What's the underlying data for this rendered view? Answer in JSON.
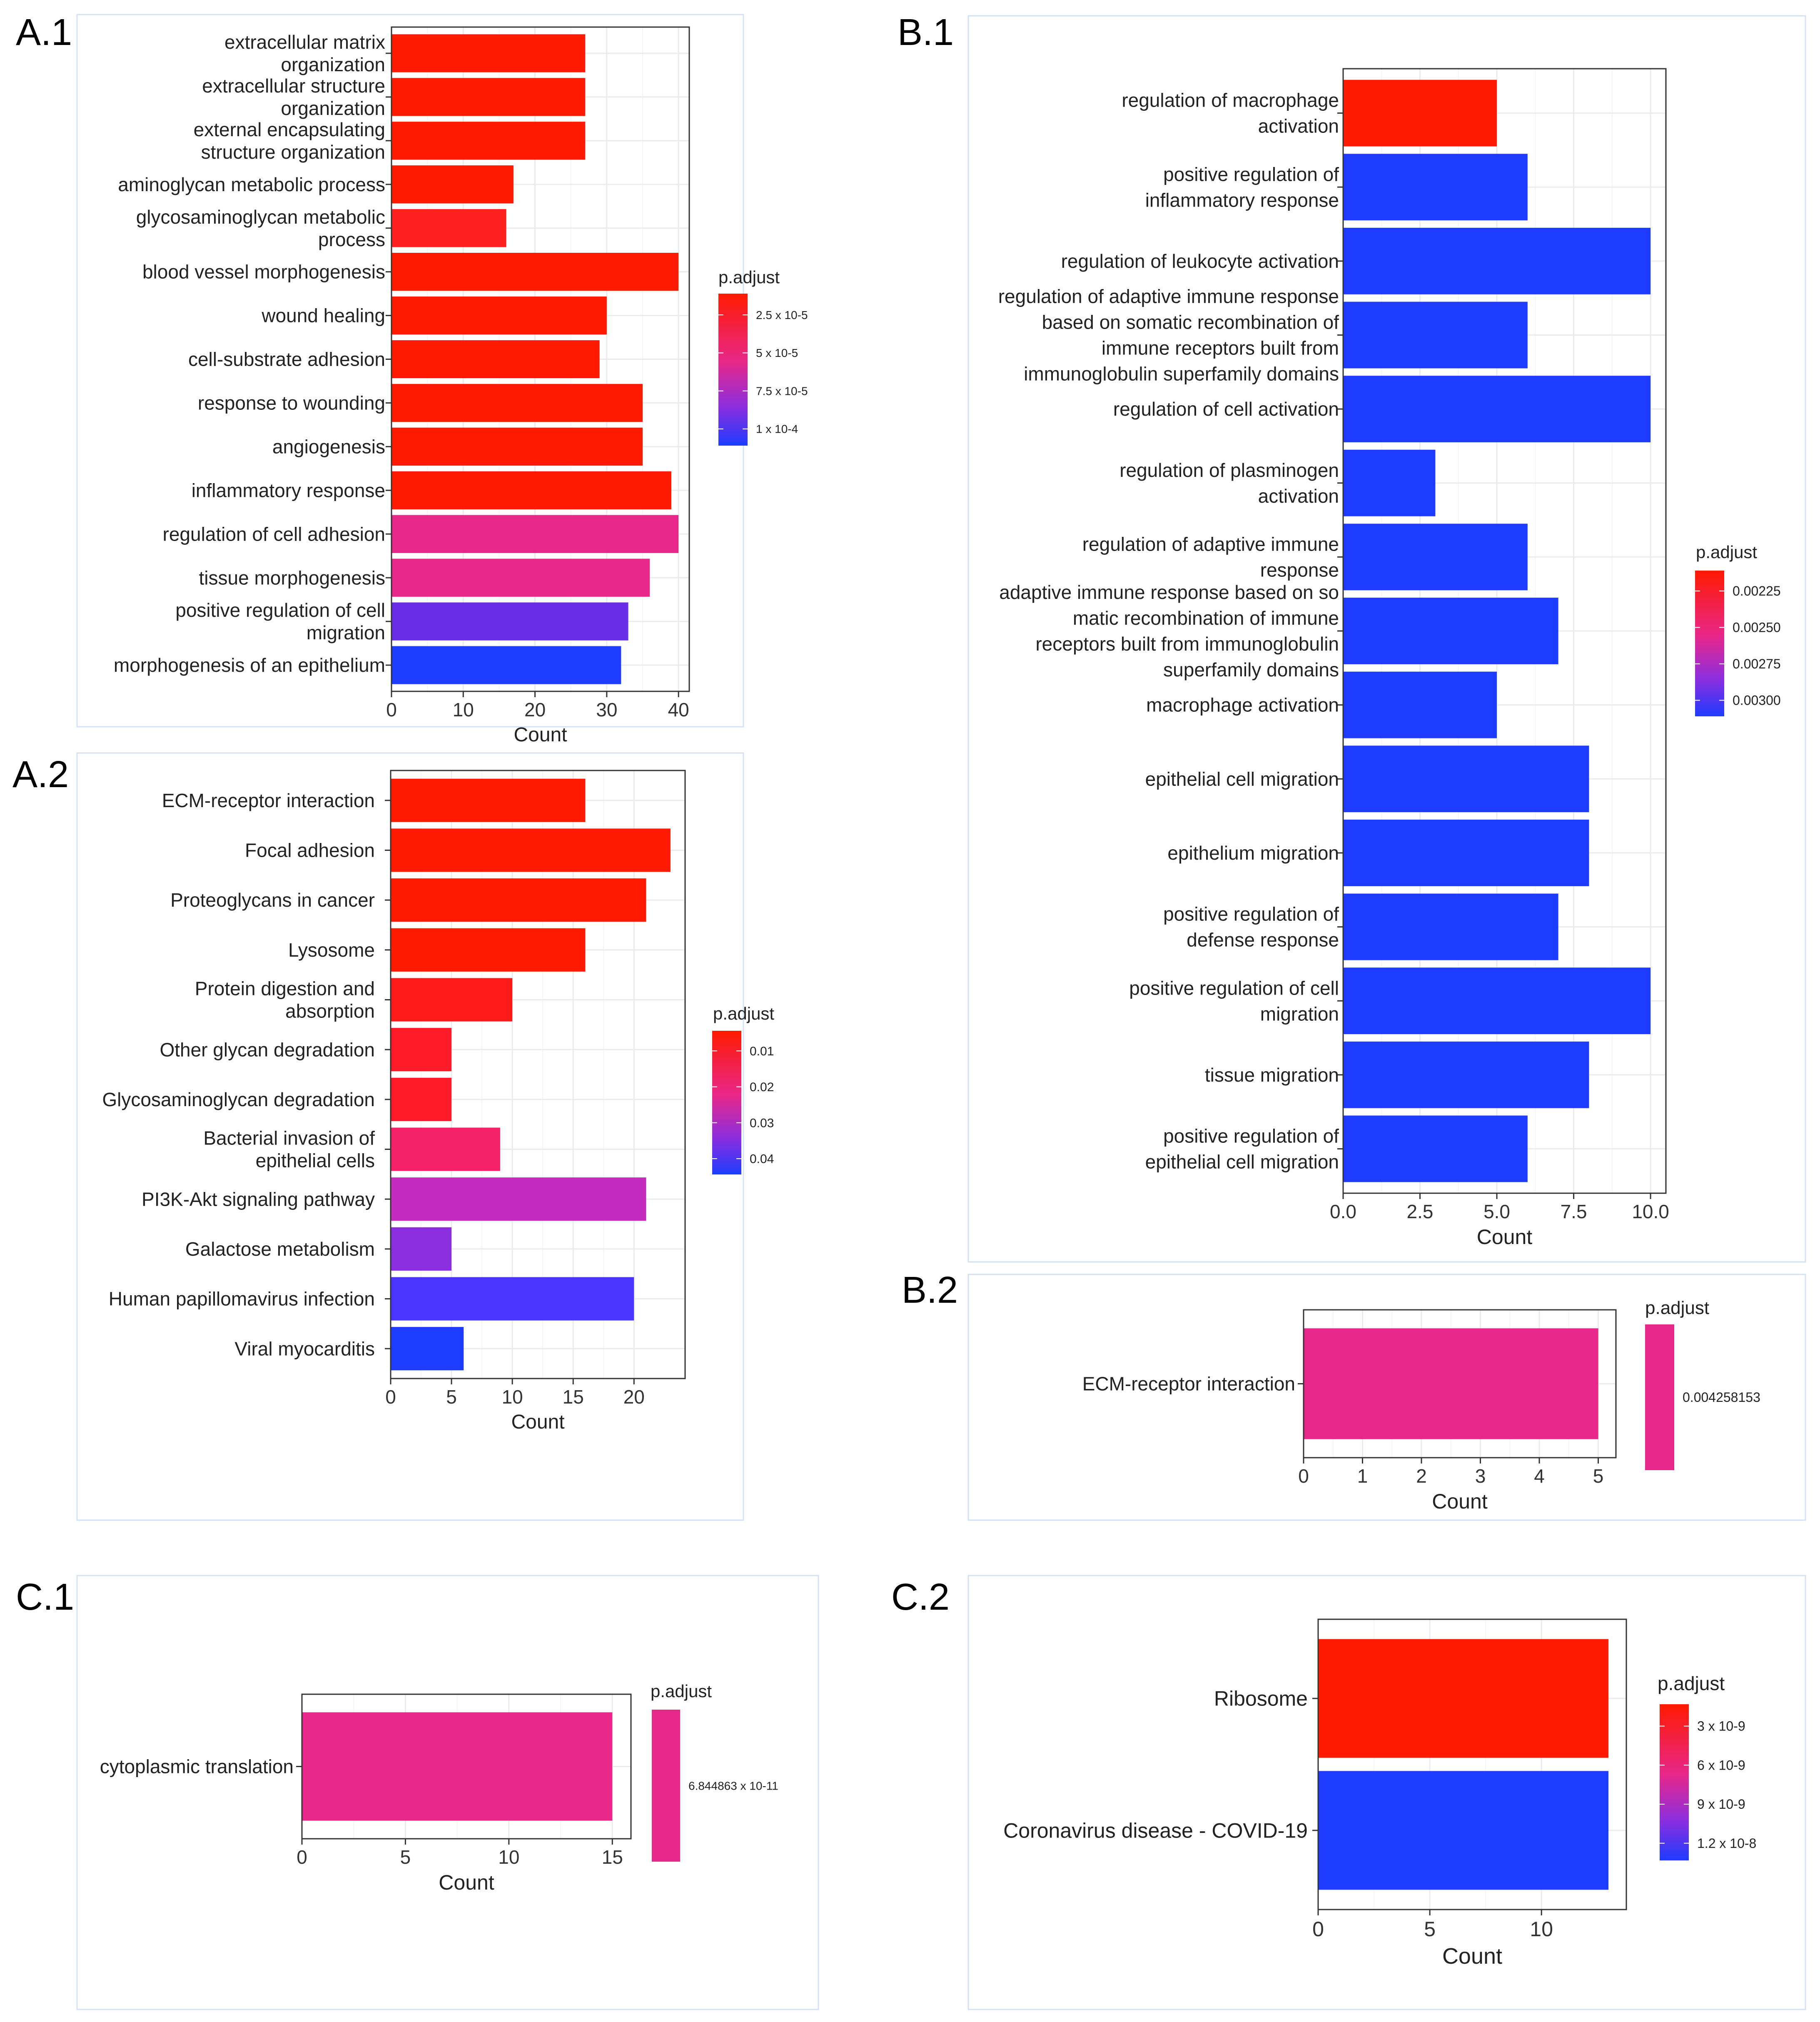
{
  "figure": {
    "colors": {
      "high": "#FF1A00",
      "mid": "#E8278A",
      "low": "#1E3CFF",
      "panel_border": "#D2E1F3",
      "grid": "#EBEBEB"
    }
  },
  "chart_data": [
    {
      "panel": "A.1",
      "type": "bar",
      "orientation": "horizontal",
      "xlabel": "Count",
      "xlim": [
        0,
        41.5
      ],
      "ticks": [
        0,
        10,
        20,
        30,
        40
      ],
      "tick_labels": [
        "0",
        "10",
        "20",
        "30",
        "40"
      ],
      "legend_title": "p.adjust",
      "legend_labels": [
        "2.5 x 10-5",
        "5 x 10-5",
        "7.5 x 10-5",
        "1 x 10-4"
      ],
      "categories": [
        [
          "extracellular matrix",
          "organization"
        ],
        [
          "extracellular structure",
          "organization"
        ],
        [
          "external encapsulating",
          "structure organization"
        ],
        [
          "aminoglycan metabolic process"
        ],
        [
          "glycosaminoglycan metabolic",
          "process"
        ],
        [
          "blood vessel morphogenesis"
        ],
        [
          "wound healing"
        ],
        [
          "cell-substrate adhesion"
        ],
        [
          "response to wounding"
        ],
        [
          "angiogenesis"
        ],
        [
          "inflammatory response"
        ],
        [
          "regulation of cell adhesion"
        ],
        [
          "tissue morphogenesis"
        ],
        [
          "positive regulation of cell",
          "migration"
        ],
        [
          "morphogenesis of an epithelium"
        ]
      ],
      "values": [
        27,
        27,
        27,
        17,
        16,
        40,
        30,
        29,
        35,
        35,
        39,
        40,
        36,
        33,
        32
      ],
      "colors": [
        "#FF1A00",
        "#FF1A00",
        "#FF1A00",
        "#FF1A00",
        "#FF2020",
        "#FF1A00",
        "#FF1A00",
        "#FF1A00",
        "#FF1A00",
        "#FF1A00",
        "#FF1A00",
        "#E8278A",
        "#E8278A",
        "#6A2EE8",
        "#1E3CFF"
      ]
    },
    {
      "panel": "A.2",
      "type": "bar",
      "orientation": "horizontal",
      "xlabel": "Count",
      "xlim": [
        0,
        24.2
      ],
      "ticks": [
        0,
        5,
        10,
        15,
        20
      ],
      "tick_labels": [
        "0",
        "5",
        "10",
        "15",
        "20"
      ],
      "legend_title": "p.adjust",
      "legend_labels": [
        "0.01",
        "0.02",
        "0.03",
        "0.04"
      ],
      "categories": [
        [
          "ECM-receptor interaction"
        ],
        [
          "Focal adhesion"
        ],
        [
          "Proteoglycans in cancer"
        ],
        [
          "Lysosome"
        ],
        [
          "Protein digestion and",
          "absorption"
        ],
        [
          "Other glycan degradation"
        ],
        [
          "Glycosaminoglycan degradation"
        ],
        [
          "Bacterial invasion of",
          "epithelial cells"
        ],
        [
          "PI3K-Akt signaling pathway"
        ],
        [
          "Galactose metabolism"
        ],
        [
          "Human papillomavirus infection"
        ],
        [
          "Viral myocarditis"
        ]
      ],
      "values": [
        16,
        23,
        21,
        16,
        10,
        5,
        5,
        9,
        21,
        5,
        20,
        6
      ],
      "colors": [
        "#FF1A00",
        "#FF1A00",
        "#FF1A00",
        "#FF1A00",
        "#FF1A1A",
        "#FF1A2A",
        "#FF1A2A",
        "#F5226A",
        "#C42CC0",
        "#8A2EE0",
        "#4A35FF",
        "#1E3CFF"
      ]
    },
    {
      "panel": "B.1",
      "type": "bar",
      "orientation": "horizontal",
      "xlabel": "Count",
      "xlim": [
        0,
        10.5
      ],
      "ticks": [
        0,
        2.5,
        5,
        7.5,
        10
      ],
      "tick_labels": [
        "0.0",
        "2.5",
        "5.0",
        "7.5",
        "10.0"
      ],
      "legend_title": "p.adjust",
      "legend_labels": [
        "0.00225",
        "0.00250",
        "0.00275",
        "0.00300"
      ],
      "categories": [
        [
          "regulation of macrophage",
          "activation"
        ],
        [
          "positive regulation of",
          "inflammatory response"
        ],
        [
          "regulation of leukocyte activation"
        ],
        [
          "regulation of adaptive immune response",
          "based on somatic recombination of",
          "immune receptors built from",
          "immunoglobulin superfamily domains"
        ],
        [
          "regulation of cell activation"
        ],
        [
          "regulation of plasminogen",
          "activation"
        ],
        [
          "regulation of adaptive immune",
          "response"
        ],
        [
          "adaptive immune response based on so",
          "matic recombination of immune",
          "receptors built from immunoglobulin",
          "superfamily domains"
        ],
        [
          "macrophage activation"
        ],
        [
          "epithelial cell migration"
        ],
        [
          "epithelium migration"
        ],
        [
          "positive regulation of",
          "defense response"
        ],
        [
          "positive regulation of cell",
          "migration"
        ],
        [
          "tissue migration"
        ],
        [
          "positive regulation of",
          "epithelial cell migration"
        ]
      ],
      "values": [
        5,
        6,
        10,
        6,
        10,
        3,
        6,
        7,
        5,
        8,
        8,
        7,
        10,
        8,
        6
      ],
      "colors": [
        "#FF1A00",
        "#1E3CFF",
        "#1E3CFF",
        "#1E3CFF",
        "#1E3CFF",
        "#1E3CFF",
        "#1E3CFF",
        "#1E3CFF",
        "#1E3CFF",
        "#1E3CFF",
        "#1E3CFF",
        "#1E3CFF",
        "#1E3CFF",
        "#1E3CFF",
        "#1E3CFF"
      ]
    },
    {
      "panel": "B.2",
      "type": "bar",
      "orientation": "horizontal",
      "xlabel": "Count",
      "xlim": [
        0,
        5.3
      ],
      "ticks": [
        0,
        1,
        2,
        3,
        4,
        5
      ],
      "tick_labels": [
        "0",
        "1",
        "2",
        "3",
        "4",
        "5"
      ],
      "legend_title": "p.adjust",
      "legend_labels": [
        "0.004258153"
      ],
      "categories": [
        [
          "ECM-receptor interaction"
        ]
      ],
      "values": [
        5
      ],
      "colors": [
        "#E8278A"
      ]
    },
    {
      "panel": "C.1",
      "type": "bar",
      "orientation": "horizontal",
      "xlabel": "Count",
      "xlim": [
        0,
        15.9
      ],
      "ticks": [
        0,
        5,
        10,
        15
      ],
      "tick_labels": [
        "0",
        "5",
        "10",
        "15"
      ],
      "legend_title": "p.adjust",
      "legend_labels": [
        "6.844863 x 10-11"
      ],
      "categories": [
        [
          "cytoplasmic translation"
        ]
      ],
      "values": [
        15
      ],
      "colors": [
        "#E8278A"
      ]
    },
    {
      "panel": "C.2",
      "type": "bar",
      "orientation": "horizontal",
      "xlabel": "Count",
      "xlim": [
        0,
        13.8
      ],
      "ticks": [
        0,
        5,
        10
      ],
      "tick_labels": [
        "0",
        "5",
        "10"
      ],
      "legend_title": "p.adjust",
      "legend_labels": [
        "3 x 10-9",
        "6 x 10-9",
        "9 x 10-9",
        "1.2 x 10-8"
      ],
      "categories": [
        [
          "Ribosome"
        ],
        [
          "Coronavirus disease - COVID-19"
        ]
      ],
      "values": [
        13,
        13
      ],
      "colors": [
        "#FF1A00",
        "#1E3CFF"
      ]
    }
  ]
}
